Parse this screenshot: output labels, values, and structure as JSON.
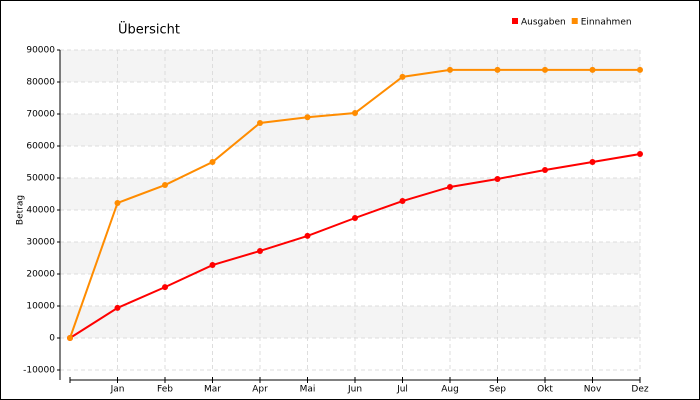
{
  "chart_data": {
    "type": "line",
    "title": "Übersicht",
    "y_label": "Betrag",
    "categories": [
      null,
      "Jan",
      "Feb",
      "Mar",
      "Apr",
      "Mai",
      "Jun",
      "Jul",
      "Aug",
      "Sep",
      "Okt",
      "Nov",
      "Dez"
    ],
    "series": [
      {
        "name": "Ausgaben",
        "color": "#ff0000",
        "values": [
          0,
          9400,
          15900,
          22800,
          27200,
          31900,
          37500,
          42800,
          47200,
          49700,
          52500,
          55000,
          57500
        ]
      },
      {
        "name": "Einnahmen",
        "color": "#ff8c00",
        "values": [
          0,
          42200,
          47800,
          55000,
          67200,
          69000,
          70300,
          81600,
          83800,
          83800,
          83800,
          83800,
          83800
        ]
      }
    ],
    "ylim": [
      -10000,
      90000
    ],
    "yticks": [
      -10000,
      0,
      10000,
      20000,
      30000,
      40000,
      50000,
      60000,
      70000,
      80000,
      90000
    ],
    "grid": true,
    "legend": "top-right"
  }
}
